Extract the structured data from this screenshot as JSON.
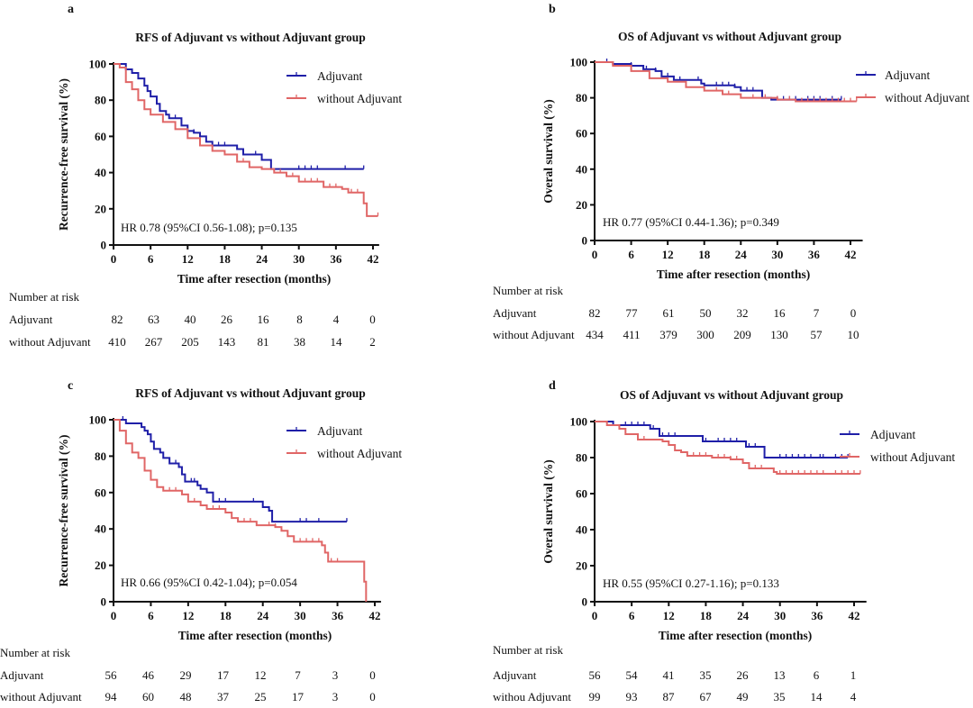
{
  "colors": {
    "adjuvant": "#1f1fa8",
    "without": "#e06666",
    "axis": "#111111"
  },
  "chart_data": [
    {
      "type": "line",
      "panel_label": "a",
      "title": "RFS of Adjuvant vs without Adjuvant group",
      "xlabel": "Time after resection (months)",
      "ylabel": "Recurrence-free survival (%)",
      "xlim": [
        0,
        43
      ],
      "ylim": [
        0,
        100
      ],
      "xticks": [
        "0",
        "6",
        "12",
        "18",
        "24",
        "30",
        "36",
        "42"
      ],
      "yticks": [
        "0",
        "20",
        "40",
        "60",
        "80",
        "100"
      ],
      "legend": [
        "Adjuvant",
        "without Adjuvant"
      ],
      "legend_position": "top-right",
      "annotation": "HR 0.78 (95%CI 0.56-1.08); p=0.135",
      "series": [
        {
          "name": "Adjuvant",
          "steps": [
            [
              0,
              100
            ],
            [
              1.5,
              100
            ],
            [
              2,
              97
            ],
            [
              3,
              95
            ],
            [
              4,
              92
            ],
            [
              5,
              88
            ],
            [
              5.5,
              85
            ],
            [
              6,
              82
            ],
            [
              7,
              78
            ],
            [
              7.5,
              74
            ],
            [
              8.5,
              72
            ],
            [
              9,
              70
            ],
            [
              11,
              66
            ],
            [
              12,
              63
            ],
            [
              13,
              62
            ],
            [
              14,
              60
            ],
            [
              15,
              57
            ],
            [
              16,
              55
            ],
            [
              20,
              53
            ],
            [
              21,
              50
            ],
            [
              24,
              47
            ],
            [
              25.5,
              42
            ],
            [
              40.5,
              42
            ]
          ],
          "censored": [
            10,
            13,
            17,
            18,
            20,
            23,
            30,
            31,
            32,
            33,
            37.5,
            40.5
          ]
        },
        {
          "name": "without Adjuvant",
          "steps": [
            [
              0,
              100
            ],
            [
              1,
              98
            ],
            [
              2,
              90
            ],
            [
              3,
              86
            ],
            [
              4,
              80
            ],
            [
              5,
              75
            ],
            [
              6,
              72
            ],
            [
              8,
              68
            ],
            [
              10,
              64
            ],
            [
              12,
              59
            ],
            [
              14,
              55
            ],
            [
              16,
              52
            ],
            [
              18,
              50
            ],
            [
              20,
              46
            ],
            [
              22,
              43
            ],
            [
              24,
              42
            ],
            [
              26,
              40
            ],
            [
              28,
              38
            ],
            [
              30,
              35
            ],
            [
              33,
              35
            ],
            [
              34,
              32
            ],
            [
              37,
              31
            ],
            [
              38,
              29
            ],
            [
              40,
              29
            ],
            [
              40.5,
              23
            ],
            [
              41,
              16
            ],
            [
              42.8,
              16
            ]
          ],
          "censored": [
            21,
            22,
            26,
            27,
            29,
            31,
            32,
            33,
            35,
            36,
            38.5,
            39.5,
            42.8
          ]
        }
      ],
      "risk_table": {
        "header": "Number at risk",
        "rows": [
          {
            "label": "Adjuvant",
            "values": [
              "82",
              "63",
              "40",
              "26",
              "16",
              "8",
              "4",
              "0"
            ]
          },
          {
            "label": "without Adjuvant",
            "values": [
              "410",
              "267",
              "205",
              "143",
              "81",
              "38",
              "14",
              "2"
            ]
          }
        ]
      }
    },
    {
      "type": "line",
      "panel_label": "b",
      "title": "OS of Adjuvant vs without Adjuvant group",
      "xlabel": "Time after resection (months)",
      "ylabel": "Overal survival (%)",
      "xlim": [
        0,
        44
      ],
      "ylim": [
        0,
        100
      ],
      "xticks": [
        "0",
        "6",
        "12",
        "18",
        "24",
        "30",
        "36",
        "42"
      ],
      "yticks": [
        "0",
        "20",
        "40",
        "60",
        "80",
        "100"
      ],
      "legend": [
        "Adjuvant",
        "without Adjuvant"
      ],
      "legend_position": "right",
      "annotation": "HR 0.77 (95%CI 0.44-1.36); p=0.349",
      "series": [
        {
          "name": "Adjuvant",
          "steps": [
            [
              0,
              100
            ],
            [
              3,
              99
            ],
            [
              6,
              98
            ],
            [
              8,
              96
            ],
            [
              10,
              95
            ],
            [
              11,
              92
            ],
            [
              13,
              90
            ],
            [
              17.5,
              88
            ],
            [
              18,
              87
            ],
            [
              23,
              86
            ],
            [
              24,
              84
            ],
            [
              27.5,
              80
            ],
            [
              29,
              79
            ],
            [
              40.5,
              79
            ]
          ],
          "censored": [
            2,
            6,
            8.5,
            10,
            12,
            14,
            17,
            20,
            21,
            22,
            23,
            25,
            26,
            30,
            31,
            32,
            33,
            35,
            36,
            37,
            39,
            40.5
          ]
        },
        {
          "name": "without Adjuvant",
          "steps": [
            [
              0,
              100
            ],
            [
              3,
              98
            ],
            [
              6,
              95
            ],
            [
              9,
              91
            ],
            [
              12,
              89
            ],
            [
              15,
              86
            ],
            [
              18,
              84
            ],
            [
              21,
              82
            ],
            [
              24,
              80
            ],
            [
              27,
              80
            ],
            [
              30,
              79
            ],
            [
              33,
              78
            ],
            [
              43,
              78
            ]
          ],
          "censored": [
            20,
            22,
            24,
            26,
            28,
            30,
            32,
            34,
            35,
            36,
            37,
            38,
            39,
            40,
            41,
            42,
            43
          ]
        }
      ],
      "risk_table": {
        "header": "Number at risk",
        "rows": [
          {
            "label": "Adjuvant",
            "values": [
              "82",
              "77",
              "61",
              "50",
              "32",
              "16",
              "7",
              "0"
            ]
          },
          {
            "label": "without Adjuvant",
            "values": [
              "434",
              "411",
              "379",
              "300",
              "209",
              "130",
              "57",
              "10"
            ]
          }
        ]
      }
    },
    {
      "type": "line",
      "panel_label": "c",
      "title": "RFS of Adjuvant vs without Adjuvant group",
      "xlabel": "Time after resection (months)",
      "ylabel": "Recurrence-free survival (%)",
      "xlim": [
        0,
        43
      ],
      "ylim": [
        0,
        100
      ],
      "xticks": [
        "0",
        "6",
        "12",
        "18",
        "24",
        "30",
        "36",
        "42"
      ],
      "yticks": [
        "0",
        "20",
        "40",
        "60",
        "80",
        "100"
      ],
      "legend": [
        "Adjuvant",
        "without Adjuvant"
      ],
      "legend_position": "top-right",
      "annotation": "HR 0.66 (95%CI 0.42-1.04); p=0.054",
      "series": [
        {
          "name": "Adjuvant",
          "steps": [
            [
              0,
              100
            ],
            [
              1.5,
              100
            ],
            [
              2,
              98
            ],
            [
              4.5,
              96
            ],
            [
              5,
              94
            ],
            [
              5.5,
              92
            ],
            [
              6,
              88
            ],
            [
              6.5,
              84
            ],
            [
              7.5,
              82
            ],
            [
              8,
              79
            ],
            [
              9,
              76
            ],
            [
              10.5,
              74
            ],
            [
              11,
              70
            ],
            [
              11.5,
              66
            ],
            [
              13.5,
              64
            ],
            [
              14,
              62
            ],
            [
              15,
              60
            ],
            [
              16,
              55
            ],
            [
              23.5,
              55
            ],
            [
              24,
              52
            ],
            [
              25,
              50
            ],
            [
              25.5,
              44
            ],
            [
              37.5,
              44
            ]
          ],
          "censored": [
            1.5,
            4.5,
            7.5,
            10,
            12.5,
            13,
            15,
            17,
            18,
            22.5,
            24,
            25,
            30,
            31,
            33,
            37.5
          ]
        },
        {
          "name": "without Adjuvant",
          "steps": [
            [
              0,
              100
            ],
            [
              1,
              94
            ],
            [
              2,
              87
            ],
            [
              3,
              82
            ],
            [
              4,
              79
            ],
            [
              5,
              72
            ],
            [
              6,
              67
            ],
            [
              7,
              63
            ],
            [
              8,
              61
            ],
            [
              11,
              59
            ],
            [
              12,
              55
            ],
            [
              14,
              53
            ],
            [
              15,
              51
            ],
            [
              18,
              49
            ],
            [
              19,
              46
            ],
            [
              20,
              44
            ],
            [
              23,
              42
            ],
            [
              26,
              41
            ],
            [
              27,
              39
            ],
            [
              28,
              36
            ],
            [
              29,
              33
            ],
            [
              33.5,
              31
            ],
            [
              34,
              27
            ],
            [
              34.5,
              22
            ],
            [
              40,
              22
            ],
            [
              40.3,
              11
            ],
            [
              40.6,
              0
            ]
          ],
          "censored": [
            8,
            9,
            10,
            11,
            13,
            15,
            16,
            17,
            18,
            21,
            22,
            23,
            25,
            26,
            27,
            30,
            31,
            32,
            33,
            34,
            35,
            36
          ]
        }
      ],
      "risk_table": {
        "header": "Number at risk",
        "rows": [
          {
            "label": "Adjuvant",
            "values": [
              "56",
              "46",
              "29",
              "17",
              "12",
              "7",
              "3",
              "0"
            ]
          },
          {
            "label": "without Adjuvant",
            "values": [
              "94",
              "60",
              "48",
              "37",
              "25",
              "17",
              "3",
              "0"
            ]
          }
        ]
      }
    },
    {
      "type": "line",
      "panel_label": "d",
      "title": "OS of Adjuvant vs without Adjuvant group",
      "xlabel": "Time after resection (months)",
      "ylabel": "Overal survival (%)",
      "xlim": [
        0,
        44
      ],
      "ylim": [
        0,
        100
      ],
      "xticks": [
        "0",
        "6",
        "12",
        "18",
        "24",
        "30",
        "36",
        "42"
      ],
      "yticks": [
        "0",
        "20",
        "40",
        "60",
        "80",
        "100"
      ],
      "legend": [
        "Adjuvant",
        "without Adjuvant"
      ],
      "legend_position": "right",
      "annotation": "HR 0.55 (95%CI 0.27-1.16); p=0.133",
      "series": [
        {
          "name": "Adjuvant",
          "steps": [
            [
              0,
              100
            ],
            [
              3,
              98
            ],
            [
              9,
              96
            ],
            [
              10.5,
              92
            ],
            [
              17.5,
              89
            ],
            [
              24.5,
              86
            ],
            [
              27.5,
              80
            ],
            [
              41,
              80
            ]
          ],
          "censored": [
            3,
            5,
            6,
            7,
            8,
            9.5,
            11,
            12,
            13,
            18,
            20,
            21,
            22,
            23,
            25,
            26,
            30,
            31,
            32,
            33,
            34,
            35,
            36.5,
            37,
            39,
            40,
            41
          ]
        },
        {
          "name": "without Adjuvant",
          "steps": [
            [
              0,
              100
            ],
            [
              2,
              98
            ],
            [
              4,
              96
            ],
            [
              5,
              93
            ],
            [
              7,
              90
            ],
            [
              11,
              89
            ],
            [
              12,
              87
            ],
            [
              13,
              84
            ],
            [
              14,
              83
            ],
            [
              15,
              81
            ],
            [
              18,
              81
            ],
            [
              19,
              80
            ],
            [
              22,
              79
            ],
            [
              24,
              77
            ],
            [
              25,
              74
            ],
            [
              28,
              74
            ],
            [
              29,
              72
            ],
            [
              29.5,
              71
            ],
            [
              43,
              71
            ]
          ],
          "censored": [
            8,
            12,
            15,
            16,
            17,
            18,
            20,
            21,
            22,
            23,
            26,
            27,
            30,
            31,
            32,
            33,
            34,
            35,
            36,
            37,
            39,
            40,
            41,
            42,
            43
          ]
        }
      ],
      "risk_table": {
        "header": "Number at risk",
        "rows": [
          {
            "label": "Adjuvant",
            "values": [
              "56",
              "54",
              "41",
              "35",
              "26",
              "13",
              "6",
              "1"
            ]
          },
          {
            "label": "withou Adjuvant",
            "values": [
              "99",
              "93",
              "87",
              "67",
              "49",
              "35",
              "14",
              "4"
            ]
          }
        ]
      }
    }
  ]
}
